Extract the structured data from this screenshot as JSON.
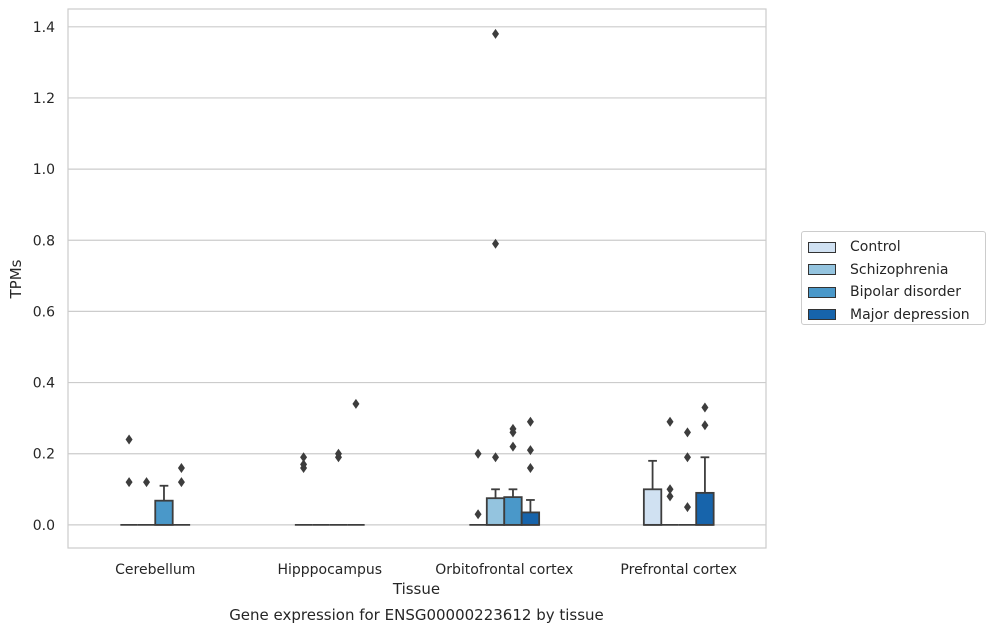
{
  "chart_data": {
    "type": "box",
    "title": "",
    "caption": "Gene expression for ENSG00000223612 by tissue",
    "xlabel": "Tissue",
    "ylabel": "TPMs",
    "ylim": [
      -0.065,
      1.45
    ],
    "yticks": [
      "0.0",
      "0.2",
      "0.4",
      "0.6",
      "0.8",
      "1.0",
      "1.2",
      "1.4"
    ],
    "ytick_values": [
      0,
      0.2,
      0.4,
      0.6,
      0.8,
      1.0,
      1.2,
      1.4
    ],
    "grid": "horizontal",
    "legend_position": "right",
    "categories": [
      "Cerebellum",
      "Hipppocampus",
      "Orbitofrontal cortex",
      "Prefrontal cortex"
    ],
    "series": [
      {
        "name": "Control",
        "color": "#d0e1f2",
        "boxes": [
          {
            "q1": 0,
            "median": 0,
            "q3": 0,
            "whisker_low": 0,
            "whisker_high": 0,
            "outliers": [
              0.12,
              0.24
            ]
          },
          {
            "q1": 0,
            "median": 0,
            "q3": 0,
            "whisker_low": 0,
            "whisker_high": 0,
            "outliers": [
              0.16,
              0.17,
              0.19
            ]
          },
          {
            "q1": 0,
            "median": 0,
            "q3": 0,
            "whisker_low": 0,
            "whisker_high": 0,
            "outliers": [
              0.03,
              0.2
            ]
          },
          {
            "q1": 0,
            "median": 0,
            "q3": 0.1,
            "whisker_low": 0,
            "whisker_high": 0.18,
            "outliers": []
          }
        ]
      },
      {
        "name": "Schizophrenia",
        "color": "#94c4df",
        "boxes": [
          {
            "q1": 0,
            "median": 0,
            "q3": 0,
            "whisker_low": 0,
            "whisker_high": 0,
            "outliers": [
              0.12
            ]
          },
          {
            "q1": 0,
            "median": 0,
            "q3": 0,
            "whisker_low": 0,
            "whisker_high": 0,
            "outliers": []
          },
          {
            "q1": 0,
            "median": 0,
            "q3": 0.075,
            "whisker_low": 0,
            "whisker_high": 0.1,
            "outliers": [
              0.19,
              0.79,
              1.38
            ]
          },
          {
            "q1": 0,
            "median": 0,
            "q3": 0,
            "whisker_low": 0,
            "whisker_high": 0,
            "outliers": [
              0.08,
              0.1,
              0.29
            ]
          }
        ]
      },
      {
        "name": "Bipolar disorder",
        "color": "#4a98c9",
        "boxes": [
          {
            "q1": 0,
            "median": 0,
            "q3": 0.068,
            "whisker_low": 0,
            "whisker_high": 0.11,
            "outliers": []
          },
          {
            "q1": 0,
            "median": 0,
            "q3": 0,
            "whisker_low": 0,
            "whisker_high": 0,
            "outliers": [
              0.19,
              0.2
            ]
          },
          {
            "q1": 0,
            "median": 0,
            "q3": 0.078,
            "whisker_low": 0,
            "whisker_high": 0.1,
            "outliers": [
              0.22,
              0.26,
              0.27
            ]
          },
          {
            "q1": 0,
            "median": 0,
            "q3": 0,
            "whisker_low": 0,
            "whisker_high": 0,
            "outliers": [
              0.05,
              0.19,
              0.26
            ]
          }
        ]
      },
      {
        "name": "Major depression",
        "color": "#1764ab",
        "boxes": [
          {
            "q1": 0,
            "median": 0,
            "q3": 0,
            "whisker_low": 0,
            "whisker_high": 0,
            "outliers": [
              0.12,
              0.16
            ]
          },
          {
            "q1": 0,
            "median": 0,
            "q3": 0,
            "whisker_low": 0,
            "whisker_high": 0,
            "outliers": [
              0.34
            ]
          },
          {
            "q1": 0,
            "median": 0,
            "q3": 0.035,
            "whisker_low": 0,
            "whisker_high": 0.07,
            "outliers": [
              0.16,
              0.21,
              0.29
            ]
          },
          {
            "q1": 0,
            "median": 0,
            "q3": 0.09,
            "whisker_low": 0,
            "whisker_high": 0.19,
            "outliers": [
              0.28,
              0.33
            ]
          }
        ]
      }
    ]
  }
}
